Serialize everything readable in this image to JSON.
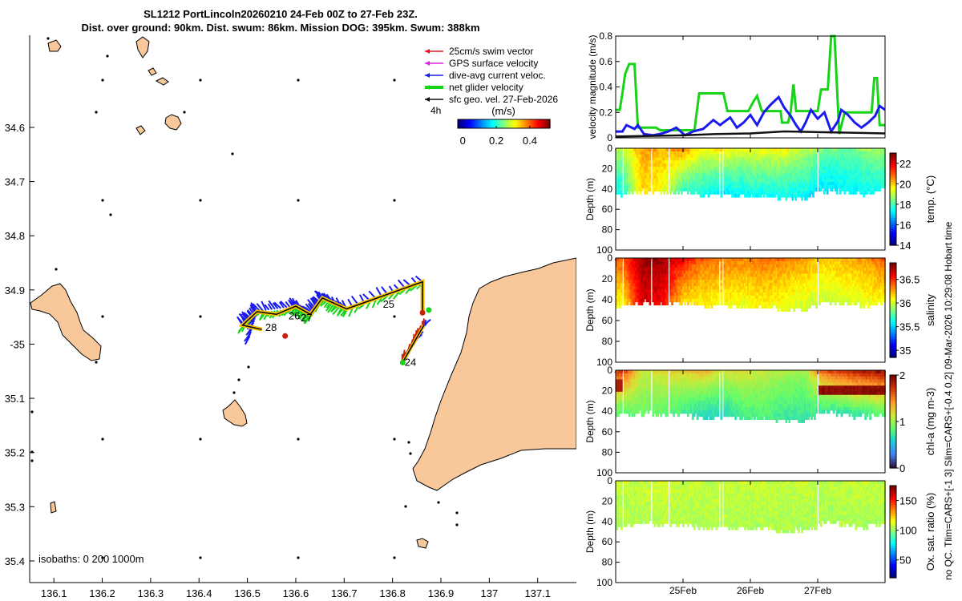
{
  "title": {
    "line1": "SL1212 PortLincoln20260210 24-Feb 00Z to 27-Feb 23Z.",
    "line2": "Dist. over ground: 90km. Dist. swum: 86km. Mission DOG: 395km. Swum: 388km"
  },
  "side_note": "no QC. Tlim=CARS+[-1 3] Slim=CARS+[-0.4 0.2] 09-Mar-2026 10:29:08 Hobart time",
  "map": {
    "xlim": [
      136.05,
      137.18
    ],
    "ylim": [
      -35.44,
      -34.43
    ],
    "xticks": [
      136.1,
      136.2,
      136.3,
      136.4,
      136.5,
      136.6,
      136.7,
      136.8,
      136.9,
      137,
      137.1
    ],
    "xtick_labels": [
      "136.1",
      "136.2",
      "136.3",
      "136.4",
      "136.5",
      "136.6",
      "136.7",
      "136.8",
      "136.9",
      "137",
      "137.1"
    ],
    "yticks": [
      -34.6,
      -34.7,
      -34.8,
      -34.9,
      -35.0,
      -35.1,
      -35.2,
      -35.3,
      -35.4
    ],
    "ytick_labels": [
      "34.6",
      "34.7",
      "34.8",
      "34.9",
      "-35",
      "35.1",
      "35.2",
      "35.3",
      "35.4"
    ],
    "legend": [
      {
        "label": "25cm/s swim vector",
        "color": "#e0141e"
      },
      {
        "label": "GPS surface velocity",
        "color": "#e020e0"
      },
      {
        "label": "dive-avg current veloc.",
        "color": "#1a1aee"
      },
      {
        "label": "net glider velocity",
        "color": "#18d418"
      },
      {
        "label": "sfc geo. vel. 27-Feb-2026",
        "color": "#111111"
      }
    ],
    "legend_extra": "4h",
    "colorbar": {
      "label": "(m/s)",
      "ticks": [
        0,
        0.2,
        0.4
      ],
      "tick_labels": [
        "0",
        "0.2",
        "0.4"
      ],
      "range": [
        -0.03,
        0.52
      ]
    },
    "day_labels": [
      {
        "text": "24",
        "lon": 136.825,
        "lat": -35.04
      },
      {
        "text": "25",
        "lon": 136.78,
        "lat": -34.933
      },
      {
        "text": "26",
        "lon": 136.585,
        "lat": -34.954
      },
      {
        "text": "27",
        "lon": 136.61,
        "lat": -34.958
      },
      {
        "text": "28",
        "lon": 136.537,
        "lat": -34.976
      }
    ],
    "isobaths": "isobaths: 0   200  1000m",
    "track": [
      {
        "lon": 136.862,
        "lat": -34.943
      },
      {
        "lon": 136.862,
        "lat": -34.885
      },
      {
        "lon": 136.705,
        "lat": -34.935
      },
      {
        "lon": 136.655,
        "lat": -34.915
      },
      {
        "lon": 136.63,
        "lat": -34.945
      },
      {
        "lon": 136.6,
        "lat": -34.93
      },
      {
        "lon": 136.56,
        "lat": -34.945
      },
      {
        "lon": 136.52,
        "lat": -34.94
      },
      {
        "lon": 136.49,
        "lat": -34.965
      },
      {
        "lon": 136.53,
        "lat": -34.973
      }
    ],
    "track_south": [
      {
        "lon": 136.82,
        "lat": -35.035
      },
      {
        "lon": 136.865,
        "lat": -34.965
      }
    ],
    "markers": [
      {
        "lon": 136.862,
        "lat": -34.942,
        "color": "#c81e0a"
      },
      {
        "lon": 136.578,
        "lat": -34.985,
        "color": "#c81e0a"
      },
      {
        "lon": 136.875,
        "lat": -34.937,
        "color": "#18d418"
      },
      {
        "lon": 136.821,
        "lat": -35.034,
        "color": "#18d418"
      }
    ]
  },
  "chart_data": [
    {
      "type": "line",
      "title": "",
      "ylabel": "velocity magnitude (m/s)",
      "ylim": [
        0,
        0.8
      ],
      "yticks": [
        0,
        0.2,
        0.4,
        0.6,
        0.8
      ],
      "ytick_labels": [
        "0",
        "0.2",
        "0.4",
        "0.6",
        "0.8"
      ],
      "xlim": [
        24,
        28
      ],
      "series": [
        {
          "name": "net glider velocity",
          "color": "#18d418",
          "x": [
            24,
            24.06,
            24.1,
            24.14,
            24.2,
            24.28,
            24.33,
            24.39,
            24.47,
            24.55,
            24.6,
            24.66,
            24.72,
            24.78,
            24.86,
            24.94,
            25.0,
            25.05,
            25.1,
            25.17,
            25.24,
            25.3,
            25.35,
            25.42,
            25.45,
            25.52,
            25.56,
            25.6,
            25.66,
            25.72,
            25.75,
            25.79,
            25.83,
            25.86,
            25.92,
            25.97,
            26.04,
            26.1,
            26.17,
            26.25,
            26.3,
            26.35,
            26.4,
            26.45,
            26.47,
            26.52,
            26.56,
            26.6,
            26.64,
            26.68,
            26.72,
            26.8,
            26.9,
            27.0,
            27.05,
            27.1,
            27.15,
            27.2,
            27.25,
            27.32,
            27.4,
            27.48,
            27.56,
            27.64,
            27.72,
            27.78,
            27.8,
            27.84,
            27.88,
            27.92,
            27.96,
            28.0
          ],
          "y": [
            0.22,
            0.22,
            0.35,
            0.5,
            0.58,
            0.58,
            0.08,
            0.08,
            0.08,
            0.08,
            0.08,
            0.06,
            0.06,
            0.06,
            0.06,
            0.06,
            0.06,
            0.06,
            0.06,
            0.06,
            0.35,
            0.35,
            0.35,
            0.35,
            0.35,
            0.35,
            0.35,
            0.35,
            0.21,
            0.21,
            0.21,
            0.21,
            0.21,
            0.21,
            0.21,
            0.21,
            0.28,
            0.33,
            0.21,
            0.21,
            0.21,
            0.21,
            0.21,
            0.21,
            0.12,
            0.12,
            0.12,
            0.21,
            0.42,
            0.21,
            0.21,
            0.21,
            0.21,
            0.21,
            0.38,
            0.38,
            0.38,
            0.8,
            0.8,
            0.03,
            0.2,
            0.2,
            0.2,
            0.2,
            0.2,
            0.2,
            0.2,
            0.47,
            0.47,
            0.1,
            0.1,
            0.1
          ]
        },
        {
          "name": "dive-avg current veloc.",
          "color": "#1a1aee",
          "x": [
            24,
            24.1,
            24.16,
            24.28,
            24.33,
            24.42,
            24.55,
            24.66,
            24.78,
            24.9,
            25.03,
            25.15,
            25.3,
            25.45,
            25.55,
            25.7,
            25.8,
            25.9,
            26.0,
            26.1,
            26.2,
            26.3,
            26.42,
            26.5,
            26.6,
            26.68,
            26.75,
            26.82,
            26.9,
            27.0,
            27.1,
            27.2,
            27.3,
            27.35,
            27.45,
            27.55,
            27.65,
            27.75,
            27.85,
            27.92,
            28.0
          ],
          "y": [
            0.05,
            0.05,
            0.1,
            0.07,
            0.1,
            0.03,
            0.02,
            0.03,
            0.05,
            0.08,
            0.02,
            0.05,
            0.07,
            0.14,
            0.1,
            0.16,
            0.08,
            0.12,
            0.18,
            0.1,
            0.2,
            0.26,
            0.32,
            0.24,
            0.17,
            0.1,
            0.05,
            0.12,
            0.22,
            0.15,
            0.2,
            0.05,
            0.13,
            0.22,
            0.18,
            0.12,
            0.08,
            0.12,
            0.17,
            0.25,
            0.22
          ]
        },
        {
          "name": "sfc geo. vel.",
          "color": "#111111",
          "x": [
            24,
            24.5,
            25,
            25.5,
            26,
            26.5,
            27,
            27.5,
            28
          ],
          "y": [
            0.01,
            0.015,
            0.02,
            0.03,
            0.035,
            0.05,
            0.045,
            0.04,
            0.035
          ]
        }
      ]
    },
    {
      "type": "heatmap",
      "ylabel": "Depth (m)",
      "cbar_label": "temp. (°C)",
      "clim": [
        14,
        23
      ],
      "cticks": [
        14,
        16,
        18,
        20,
        22
      ],
      "ctick_labels": [
        "14",
        "16",
        "18",
        "20",
        "22"
      ],
      "ylim": [
        0,
        100
      ],
      "yticks": [
        0,
        20,
        40,
        60,
        80,
        100
      ],
      "ytick_labels": [
        "0",
        "20",
        "40",
        "60",
        "80",
        "100"
      ],
      "x": [
        24.1,
        24.4,
        24.7,
        25.0,
        25.3,
        25.6,
        25.9,
        26.2,
        26.5,
        26.8,
        27.1,
        27.4,
        27.7,
        27.95
      ],
      "depth_max": [
        44,
        40,
        42,
        41,
        45,
        44,
        46,
        45,
        48,
        47,
        40,
        42,
        44,
        40
      ],
      "surface": [
        19.0,
        20.5,
        20.3,
        20.6,
        19.5,
        19.8,
        19.4,
        19.6,
        19.6,
        19.1,
        18.4,
        18.3,
        18.6,
        18.8
      ],
      "bottom": [
        17.5,
        20.0,
        19.5,
        17.8,
        17.5,
        17.2,
        17.3,
        17.4,
        17.4,
        17.3,
        17.1,
        17.3,
        17.4,
        17.6
      ],
      "gaps": [
        [
          24.09,
          24.12
        ],
        [
          24.52,
          24.55
        ],
        [
          24.78,
          24.8
        ],
        [
          25.52,
          25.56
        ],
        [
          25.58,
          25.6
        ],
        [
          26.39,
          26.41
        ],
        [
          26.98,
          27.02
        ]
      ]
    },
    {
      "type": "heatmap",
      "ylabel": "Depth (m)",
      "cbar_label": "salinity",
      "clim": [
        34.85,
        36.85
      ],
      "cticks": [
        35,
        35.5,
        36,
        36.5
      ],
      "ctick_labels": [
        "35",
        "35.5",
        "36",
        "36.5"
      ],
      "ylim": [
        0,
        100
      ],
      "yticks": [
        0,
        20,
        40,
        60,
        80,
        100
      ],
      "ytick_labels": [
        "0",
        "20",
        "40",
        "60",
        "80",
        "100"
      ],
      "x": [
        24.1,
        24.4,
        24.7,
        25.0,
        25.3,
        25.6,
        25.9,
        26.2,
        26.5,
        26.8,
        27.1,
        27.4,
        27.7,
        27.95
      ],
      "depth_max": [
        44,
        40,
        42,
        41,
        45,
        44,
        46,
        45,
        48,
        47,
        40,
        42,
        44,
        40
      ],
      "surface": [
        36.45,
        36.8,
        36.8,
        36.6,
        36.4,
        36.38,
        36.35,
        36.4,
        36.35,
        36.3,
        36.2,
        36.25,
        36.3,
        36.4
      ],
      "bottom": [
        36.1,
        36.7,
        36.6,
        36.15,
        36.1,
        36.1,
        36.05,
        36.1,
        36.05,
        36.0,
        36.0,
        36.0,
        36.05,
        36.1
      ],
      "gaps": [
        [
          24.09,
          24.12
        ],
        [
          24.52,
          24.55
        ],
        [
          24.78,
          24.8
        ],
        [
          25.52,
          25.56
        ],
        [
          25.58,
          25.6
        ],
        [
          26.39,
          26.41
        ],
        [
          26.98,
          27.02
        ]
      ]
    },
    {
      "type": "heatmap",
      "ylabel": "Depth (m)",
      "cbar_label": "chl-a (mg m-3)",
      "clim": [
        0,
        2
      ],
      "cticks": [
        0,
        1,
        2
      ],
      "ctick_labels": [
        "0",
        "1",
        "2"
      ],
      "ylim": [
        0,
        100
      ],
      "yticks": [
        0,
        20,
        40,
        60,
        80,
        100
      ],
      "ytick_labels": [
        "0",
        "20",
        "40",
        "60",
        "80",
        "100"
      ],
      "x": [
        24.1,
        24.4,
        24.7,
        25.0,
        25.3,
        25.6,
        25.9,
        26.2,
        26.5,
        26.8,
        27.1,
        27.4,
        27.7,
        27.95
      ],
      "depth_max": [
        44,
        40,
        42,
        41,
        45,
        44,
        46,
        45,
        48,
        47,
        40,
        42,
        44,
        40
      ],
      "surface": [
        1.7,
        1.1,
        1.2,
        1.25,
        1.3,
        1.15,
        1.2,
        1.1,
        1.05,
        1.0,
        1.6,
        1.75,
        1.85,
        1.9
      ],
      "bottom": [
        0.8,
        0.9,
        0.85,
        0.75,
        0.6,
        0.6,
        0.75,
        0.8,
        0.7,
        0.7,
        0.7,
        0.65,
        0.7,
        0.8
      ],
      "gaps": [
        [
          24.09,
          24.12
        ],
        [
          24.52,
          24.55
        ],
        [
          24.78,
          24.8
        ],
        [
          25.52,
          25.56
        ],
        [
          25.58,
          25.6
        ],
        [
          26.39,
          26.41
        ],
        [
          26.98,
          27.02
        ]
      ]
    },
    {
      "type": "heatmap",
      "ylabel": "Depth (m)",
      "cbar_label": "Ox. sat. ratio (%)",
      "clim": [
        20,
        175
      ],
      "cticks": [
        50,
        100,
        150
      ],
      "ctick_labels": [
        "50",
        "100",
        "150"
      ],
      "ylim": [
        0,
        100
      ],
      "yticks": [
        0,
        20,
        40,
        60,
        80,
        100
      ],
      "ytick_labels": [
        "0",
        "20",
        "40",
        "60",
        "80",
        "100"
      ],
      "x": [
        24.1,
        24.4,
        24.7,
        25.0,
        25.3,
        25.6,
        25.9,
        26.2,
        26.5,
        26.8,
        27.1,
        27.4,
        27.7,
        27.95
      ],
      "depth_max": [
        44,
        40,
        42,
        41,
        45,
        44,
        46,
        45,
        48,
        47,
        40,
        42,
        44,
        40
      ],
      "surface": [
        108,
        109,
        110,
        109,
        108,
        109,
        108,
        109,
        108,
        108,
        107,
        108,
        108,
        108
      ],
      "bottom": [
        104,
        105,
        106,
        105,
        104,
        105,
        104,
        105,
        104,
        104,
        104,
        104,
        104,
        104
      ],
      "gaps": [
        [
          24.09,
          24.12
        ],
        [
          24.52,
          24.55
        ],
        [
          24.78,
          24.8
        ],
        [
          25.52,
          25.56
        ],
        [
          25.58,
          25.6
        ],
        [
          26.39,
          26.41
        ],
        [
          26.98,
          27.02
        ]
      ]
    }
  ],
  "time_axis": {
    "xlim": [
      24,
      28
    ],
    "ticks": [
      25,
      26,
      27
    ],
    "tick_labels": [
      "25Feb",
      "26Feb",
      "27Feb"
    ]
  }
}
